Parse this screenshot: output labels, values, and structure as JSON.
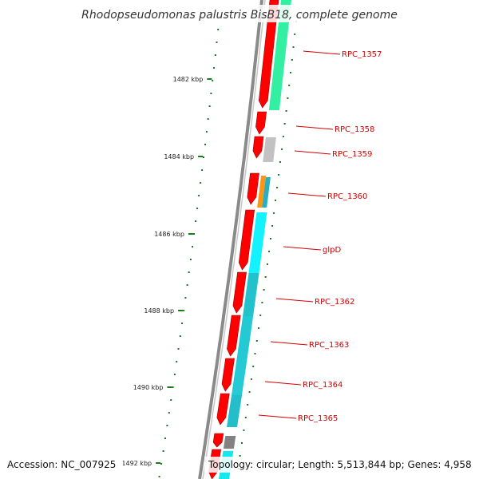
{
  "title": "Rhodopseudomonas palustris BisB18, complete genome",
  "footer": {
    "accession": "Accession: NC_007925",
    "topology": "Topology: circular; Length: 5,513,844 bp; Genes: 4,958"
  },
  "colors": {
    "cds": "#ff0000",
    "backbone": "#888888",
    "tick": "#1a7a1a",
    "label": "#d40000"
  },
  "kbp_ticks": [
    {
      "label": "1482 kbp"
    },
    {
      "label": "1484 kbp"
    },
    {
      "label": "1486 kbp"
    },
    {
      "label": "1488 kbp"
    },
    {
      "label": "1490 kbp"
    },
    {
      "label": "1492 kbp"
    }
  ],
  "gene_labels": [
    {
      "label": "RPC_1357"
    },
    {
      "label": "RPC_1358"
    },
    {
      "label": "RPC_1359"
    },
    {
      "label": "RPC_1360"
    },
    {
      "label": "glpD"
    },
    {
      "label": "RPC_1362"
    },
    {
      "label": "RPC_1363"
    },
    {
      "label": "RPC_1364"
    },
    {
      "label": "RPC_1365"
    }
  ]
}
